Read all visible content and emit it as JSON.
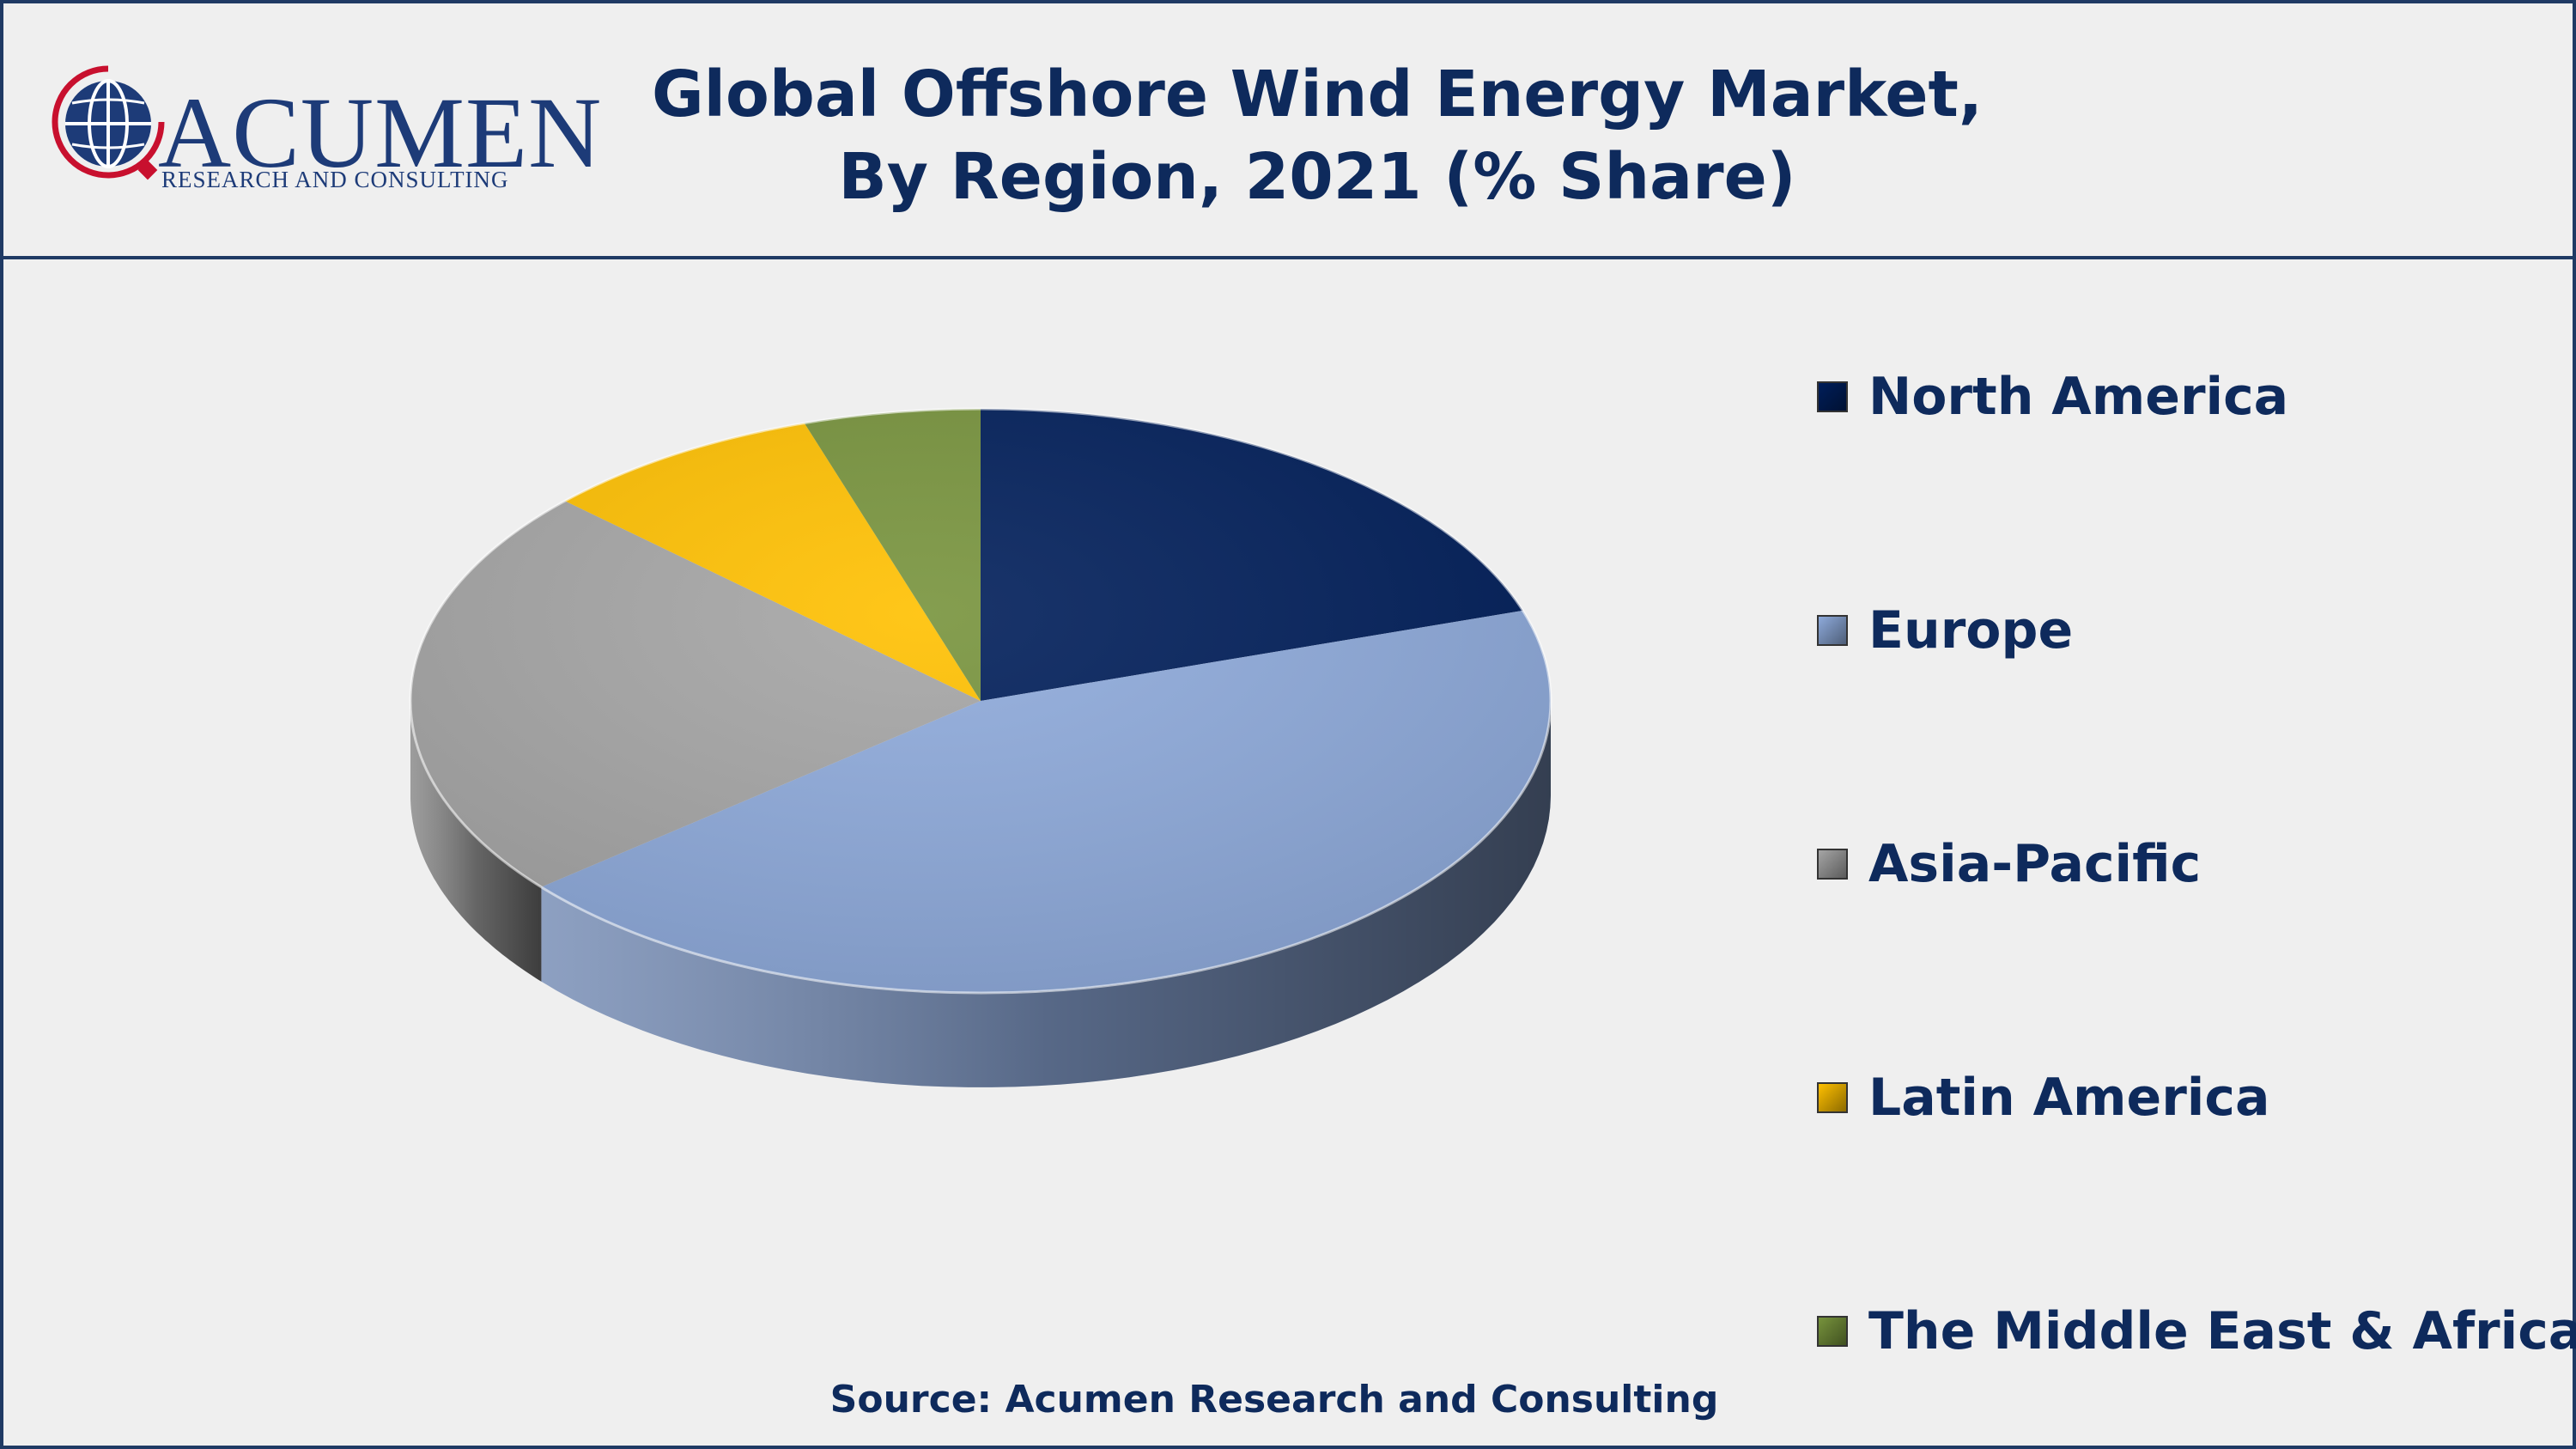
{
  "logo": {
    "name": "ACUMEN",
    "tagline": "RESEARCH AND CONSULTING"
  },
  "title_line1": "Global Offshore Wind Energy Market,",
  "title_line2": "By Region, 2021 (% Share)",
  "source": "Source: Acumen Research and Consulting",
  "chart_data": {
    "type": "pie",
    "style": "3d",
    "title": "Global Offshore Wind Energy Market, By Region, 2021 (% Share)",
    "legend_position": "right",
    "slices": [
      {
        "name": "North America",
        "value": 20,
        "color": "#001e5a"
      },
      {
        "name": "Europe",
        "value": 44,
        "color": "#8eaadb"
      },
      {
        "name": "Asia-Pacific",
        "value": 23,
        "color": "#a5a5a5"
      },
      {
        "name": "Latin America",
        "value": 8,
        "color": "#ffc000"
      },
      {
        "name": "The Middle East & Africa",
        "value": 5,
        "color": "#77933c"
      }
    ]
  }
}
